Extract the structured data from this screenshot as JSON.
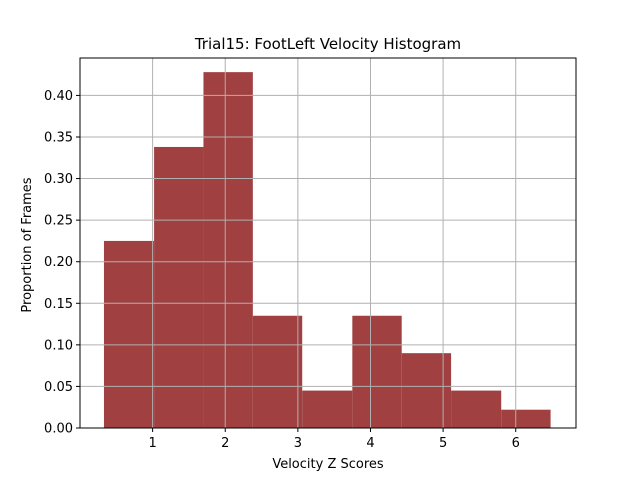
{
  "chart_data": {
    "type": "bar",
    "title": "Trial15: FootLeft Velocity Histogram",
    "xlabel": "Velocity Z Scores",
    "ylabel": "Proportion of Frames",
    "bar_color": "#a04040",
    "grid_color": "#b0b0b0",
    "grid": true,
    "xlim": [
      0.0,
      6.83
    ],
    "ylim": [
      0.0,
      0.445
    ],
    "xticks": [
      1,
      2,
      3,
      4,
      5,
      6
    ],
    "yticks": [
      0.0,
      0.05,
      0.1,
      0.15,
      0.2,
      0.25,
      0.3,
      0.35,
      0.4
    ],
    "ytick_labels": [
      "0.00",
      "0.05",
      "0.10",
      "0.15",
      "0.20",
      "0.25",
      "0.30",
      "0.35",
      "0.40"
    ],
    "bins": [
      {
        "x0": 0.33,
        "x1": 1.02,
        "value": 0.225
      },
      {
        "x0": 1.02,
        "x1": 1.7,
        "value": 0.338
      },
      {
        "x0": 1.7,
        "x1": 2.38,
        "value": 0.428
      },
      {
        "x0": 2.38,
        "x1": 3.06,
        "value": 0.135
      },
      {
        "x0": 3.06,
        "x1": 3.75,
        "value": 0.045
      },
      {
        "x0": 3.75,
        "x1": 4.43,
        "value": 0.135
      },
      {
        "x0": 4.43,
        "x1": 5.11,
        "value": 0.09
      },
      {
        "x0": 5.11,
        "x1": 5.8,
        "value": 0.045
      },
      {
        "x0": 5.8,
        "x1": 6.48,
        "value": 0.022
      }
    ]
  }
}
